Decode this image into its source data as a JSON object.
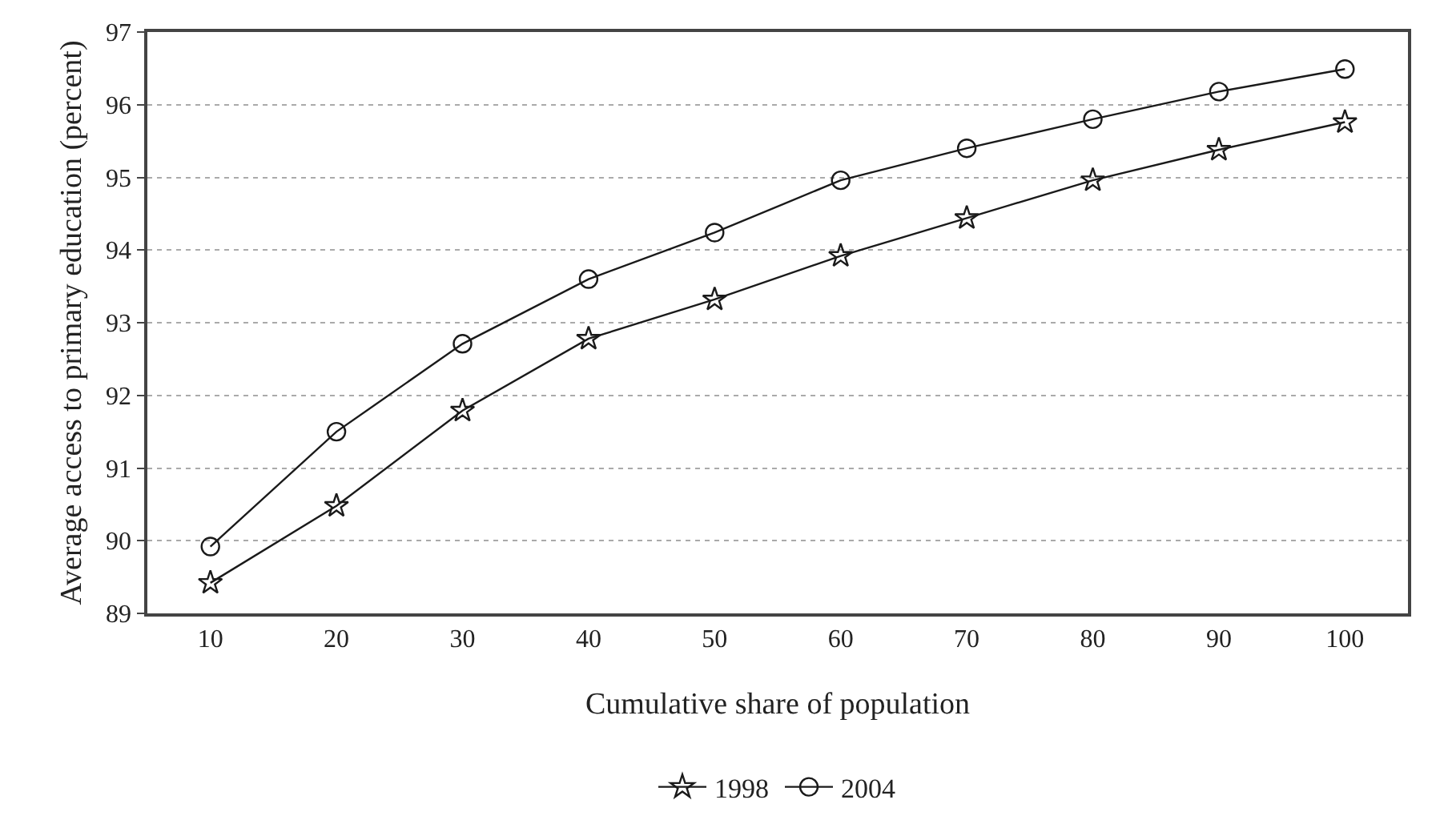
{
  "chart_data": {
    "type": "line",
    "xlabel": "Cumulative share of population",
    "ylabel": "Average access to primary education (percent)",
    "categories": [
      "10",
      "20",
      "30",
      "40",
      "50",
      "60",
      "70",
      "80",
      "90",
      "100"
    ],
    "series": [
      {
        "name": "1998",
        "color": "#1a1a1a",
        "marker": "star",
        "values": [
          89.42,
          90.48,
          91.79,
          92.78,
          93.32,
          93.92,
          94.44,
          94.96,
          95.38,
          95.76
        ]
      },
      {
        "name": "2004",
        "color": "#1a1a1a",
        "marker": "circle",
        "values": [
          89.92,
          91.5,
          92.71,
          93.6,
          94.24,
          94.96,
          95.4,
          95.8,
          96.18,
          96.49
        ]
      }
    ],
    "ylim": [
      89,
      97
    ],
    "yticks": [
      89,
      90,
      91,
      92,
      93,
      94,
      95,
      96,
      97
    ],
    "grid": "y",
    "legend": "bottom",
    "line_style": "solid"
  }
}
